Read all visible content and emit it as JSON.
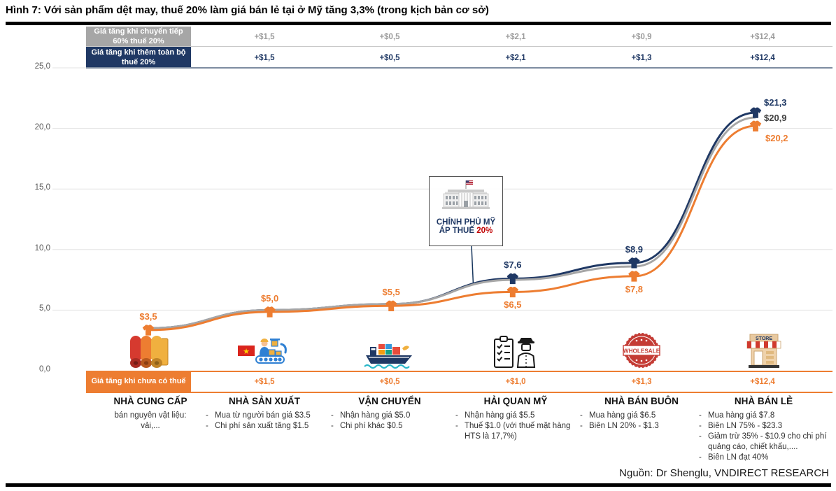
{
  "title": "Hình 7: Với sản phẩm dệt may, thuế 20% làm giá bán lẻ tại ở Mỹ tăng 3,3% (trong kịch bản cơ sở)",
  "source": "Nguồn: Dr Shenglu, VNDIRECT RESEARCH",
  "colors": {
    "navy": "#1f3864",
    "gray": "#a6a6a6",
    "orange": "#ed7d31",
    "dark": "#404040",
    "red": "#c00000"
  },
  "y_axis": [
    "25,0",
    "20,0",
    "15,0",
    "10,0",
    "5,0",
    "0,0"
  ],
  "header_rows": [
    {
      "label": "Giá tăng khi chuyển tiếp 60% thuế 20%",
      "values": [
        "+$1,5",
        "+$0,5",
        "+$2,1",
        "+$0,9",
        "+$12,4"
      ]
    },
    {
      "label": "Giá tăng khi thêm toàn bộ thuế 20%",
      "values": [
        "+$1,5",
        "+$0,5",
        "+$2,1",
        "+$1,3",
        "+$12,4"
      ]
    }
  ],
  "footer_row": {
    "label": "Giá tăng khi chưa có thuế",
    "values": [
      "+$1,5",
      "+$0,5",
      "+$1,0",
      "+$1,3",
      "+$12,4"
    ]
  },
  "annotation": {
    "line1": "CHÍNH PHỦ MỸ",
    "line2_prefix": "ÁP THUẾ ",
    "line2_highlight": "20%"
  },
  "chart_data": {
    "type": "line",
    "title": "Giá sản phẩm dệt may qua chuỗi cung ứng (USD)",
    "categories": [
      "NHÀ CUNG CẤP",
      "NHÀ SẢN XUẤT",
      "VẬN CHUYỂN",
      "HẢI QUAN MỸ",
      "NHÀ BÁN BUÔN",
      "NHÀ BÁN LẺ"
    ],
    "ylim": [
      0,
      25
    ],
    "grid_step": 5,
    "legend_position": "none",
    "series": [
      {
        "name": "Giá tăng khi thêm toàn bộ thuế 20%",
        "color_key": "navy",
        "values": [
          3.5,
          5.0,
          5.5,
          7.6,
          8.9,
          21.3
        ]
      },
      {
        "name": "Giá tăng khi chuyển tiếp 60% thuế 20%",
        "color_key": "gray",
        "values": [
          3.5,
          5.0,
          5.5,
          7.5,
          8.6,
          20.9
        ]
      },
      {
        "name": "Giá tăng khi chưa có thuế",
        "color_key": "orange",
        "values": [
          3.5,
          5.0,
          5.5,
          6.5,
          7.8,
          20.2
        ]
      }
    ],
    "point_labels": [
      {
        "series": 2,
        "idx": 0,
        "text": "$3,5",
        "color_key": "orange",
        "pos": "above",
        "marker": true
      },
      {
        "series": 2,
        "idx": 1,
        "text": "$5,0",
        "color_key": "orange",
        "pos": "above",
        "marker": true
      },
      {
        "series": 2,
        "idx": 2,
        "text": "$5,5",
        "color_key": "orange",
        "pos": "above",
        "marker": true
      },
      {
        "series": 0,
        "idx": 3,
        "text": "$7,6",
        "color_key": "navy",
        "pos": "above",
        "marker": true
      },
      {
        "series": 2,
        "idx": 3,
        "text": "$6,5",
        "color_key": "orange",
        "pos": "below",
        "marker": true
      },
      {
        "series": 0,
        "idx": 4,
        "text": "$8,9",
        "color_key": "navy",
        "pos": "above",
        "marker": true
      },
      {
        "series": 2,
        "idx": 4,
        "text": "$7,8",
        "color_key": "orange",
        "pos": "below",
        "marker": true
      },
      {
        "series": 0,
        "idx": 5,
        "text": "$21,3",
        "color_key": "navy",
        "pos": "right-above",
        "marker": true
      },
      {
        "series": 1,
        "idx": 5,
        "text": "$20,9",
        "color_key": "dark",
        "pos": "right",
        "marker": false
      },
      {
        "series": 2,
        "idx": 5,
        "text": "$20,2",
        "color_key": "orange",
        "pos": "right-below",
        "marker": true
      }
    ]
  },
  "columns": [
    {
      "name": "NHÀ CUNG CẤP",
      "desc": [
        "bán nguyên vật liệu:",
        "vải,..."
      ]
    },
    {
      "name": "NHÀ SẢN XUẤT",
      "desc": [
        "Mua từ người bán giá $3.5",
        "Chi phí sản xuất tăng $1.5"
      ]
    },
    {
      "name": "VẬN CHUYỂN",
      "desc": [
        "Nhận hàng giá $5.0",
        "Chi phí khác $0.5"
      ]
    },
    {
      "name": "HẢI QUAN MỸ",
      "desc": [
        "Nhận hàng giá $5.5",
        "Thuế $1.0 (với thuế mặt hàng HTS là 17,7%)"
      ]
    },
    {
      "name": "NHÀ BÁN BUÔN",
      "icon_text": "WHOLESALE",
      "desc": [
        "Mua hàng giá $6.5",
        "Biên LN 20% - $1.3"
      ]
    },
    {
      "name": "NHÀ BÁN LẺ",
      "icon_text": "STORE",
      "desc": [
        "Mua hàng giá $7.8",
        "Biên LN 75% - $23.3",
        "Giảm trừ 35% - $10.9 cho chi phí quảng cáo, chiết khấu,....",
        "Biên LN đạt 40%"
      ]
    }
  ]
}
